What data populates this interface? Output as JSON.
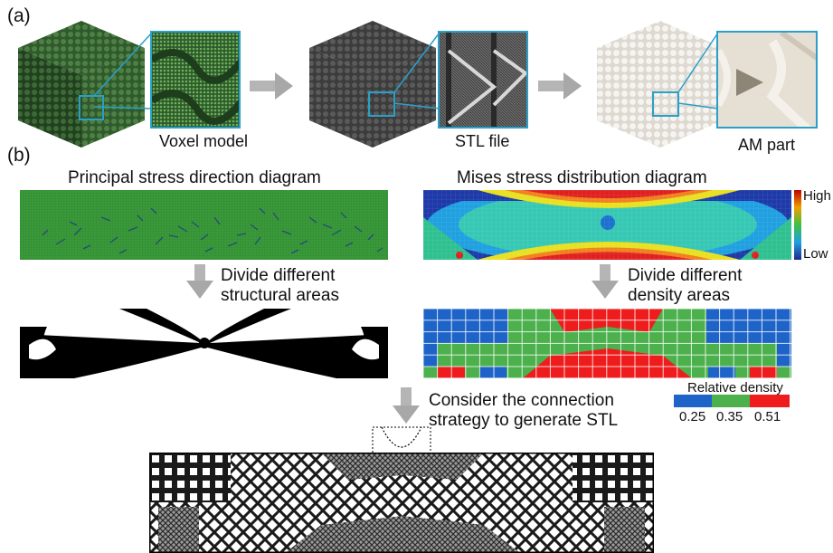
{
  "panel_a": {
    "label": "(a)",
    "captions": {
      "voxel": "Voxel model",
      "stl": "STL file",
      "am": "AM part"
    }
  },
  "panel_b": {
    "label": "(b)",
    "principal_title": "Principal stress direction diagram",
    "mises_title": "Mises stress distribution diagram",
    "step_left": [
      "Divide different",
      "structural areas"
    ],
    "step_right": [
      "Divide different",
      "density areas"
    ],
    "step_bottom": [
      "Consider the connection",
      "strategy to generate STL"
    ],
    "colorbar": {
      "high": "High",
      "low": "Low"
    },
    "density_legend": {
      "title": "Relative density",
      "values": [
        "0.25",
        "0.35",
        "0.51"
      ],
      "colors": [
        "#1e64c8",
        "#4cb04c",
        "#ee1c1c"
      ]
    }
  },
  "colors": {
    "accent_zoom": "#2aa0c8",
    "voxel_green": "#3f6b3a",
    "stl_gray": "#4a4a4a",
    "am_white": "#ece8e2"
  }
}
